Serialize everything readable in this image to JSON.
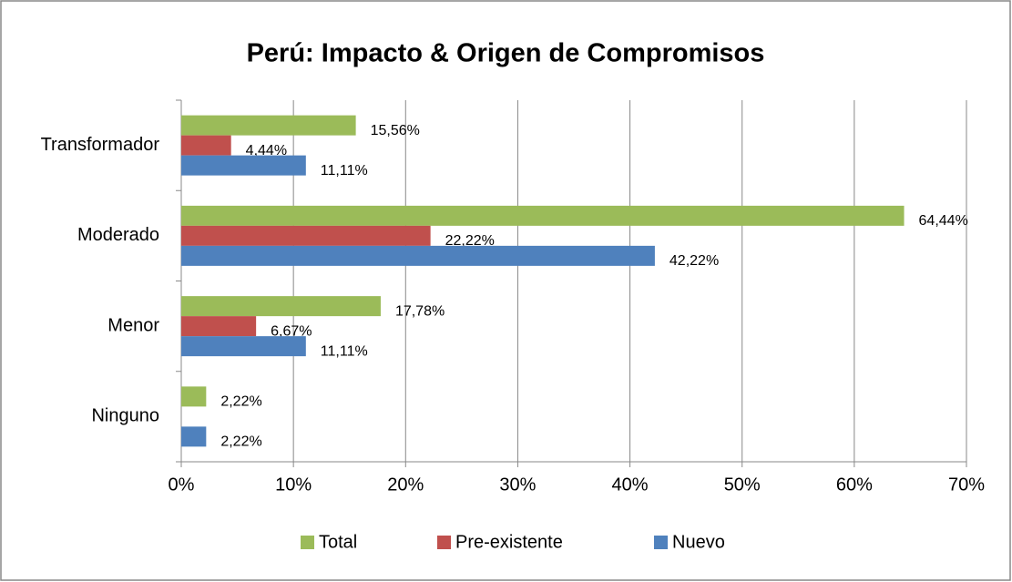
{
  "chart_data": {
    "type": "bar",
    "orientation": "horizontal",
    "title": "Perú: Impacto & Origen de Compromisos",
    "categories": [
      "Transformador",
      "Moderado",
      "Menor",
      "Ninguno"
    ],
    "series": [
      {
        "name": "Total",
        "color": "#9bbb59",
        "values": [
          15.56,
          64.44,
          17.78,
          2.22
        ],
        "value_labels": [
          "15,56%",
          "64,44%",
          "17,78%",
          "2,22%"
        ]
      },
      {
        "name": "Pre-existente",
        "color": "#c0504d",
        "values": [
          4.44,
          22.22,
          6.67,
          null
        ],
        "value_labels": [
          "4,44%",
          "22,22%",
          "6,67%",
          null
        ]
      },
      {
        "name": "Nuevo",
        "color": "#4f81bd",
        "values": [
          11.11,
          42.22,
          11.11,
          2.22
        ],
        "value_labels": [
          "11,11%",
          "42,22%",
          "11,11%",
          "2,22%"
        ]
      }
    ],
    "xlim": [
      0,
      70
    ],
    "xticks": [
      {
        "value": 0,
        "label": "0%"
      },
      {
        "value": 10,
        "label": "10%"
      },
      {
        "value": 20,
        "label": "20%"
      },
      {
        "value": 30,
        "label": "30%"
      },
      {
        "value": 40,
        "label": "40%"
      },
      {
        "value": 50,
        "label": "50%"
      },
      {
        "value": 60,
        "label": "60%"
      },
      {
        "value": 70,
        "label": "70%"
      }
    ],
    "grid": true,
    "legend": "bottom"
  }
}
